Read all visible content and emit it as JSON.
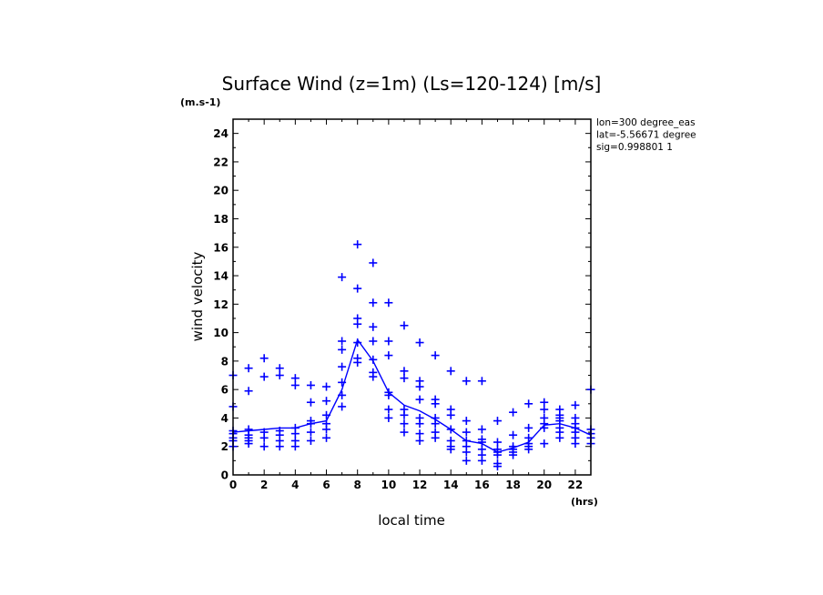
{
  "chart_data": {
    "type": "scatter",
    "title": "Surface Wind (z=1m) (Ls=120-124) [m/s]",
    "y_units": "(m.s-1)",
    "x_units": "(hrs)",
    "xlabel": "local time",
    "ylabel": "wind velocity",
    "xlim": [
      0,
      23
    ],
    "ylim": [
      0,
      25
    ],
    "x_ticks": [
      0,
      2,
      4,
      6,
      8,
      10,
      12,
      14,
      16,
      18,
      20,
      22
    ],
    "y_ticks": [
      0,
      2,
      4,
      6,
      8,
      10,
      12,
      14,
      16,
      18,
      20,
      22,
      24
    ],
    "annotations": [
      "lon=300 degree_eas",
      "lat=-5.56671 degree",
      "sig=0.998801 1"
    ],
    "color": "#0000ff",
    "series": [
      {
        "marker": "+",
        "points": [
          [
            0,
            7.0
          ],
          [
            0,
            4.8
          ],
          [
            0,
            3.1
          ],
          [
            0,
            2.9
          ],
          [
            0,
            2.6
          ],
          [
            0,
            2.4
          ],
          [
            0,
            2.0
          ],
          [
            1,
            7.5
          ],
          [
            1,
            5.9
          ],
          [
            1,
            3.2
          ],
          [
            1,
            2.8
          ],
          [
            1,
            2.6
          ],
          [
            1,
            2.4
          ],
          [
            1,
            2.2
          ],
          [
            2,
            8.2
          ],
          [
            2,
            6.9
          ],
          [
            2,
            3.0
          ],
          [
            2,
            2.6
          ],
          [
            2,
            2.0
          ],
          [
            3,
            7.5
          ],
          [
            3,
            7.0
          ],
          [
            3,
            3.1
          ],
          [
            3,
            2.8
          ],
          [
            3,
            2.4
          ],
          [
            3,
            2.0
          ],
          [
            4,
            6.8
          ],
          [
            4,
            6.3
          ],
          [
            4,
            3.3
          ],
          [
            4,
            2.9
          ],
          [
            4,
            2.4
          ],
          [
            4,
            2.0
          ],
          [
            5,
            6.3
          ],
          [
            5,
            5.1
          ],
          [
            5,
            3.8
          ],
          [
            5,
            3.6
          ],
          [
            5,
            3.0
          ],
          [
            5,
            2.4
          ],
          [
            6,
            6.2
          ],
          [
            6,
            5.2
          ],
          [
            6,
            4.2
          ],
          [
            6,
            3.6
          ],
          [
            6,
            3.2
          ],
          [
            6,
            2.6
          ],
          [
            7,
            13.9
          ],
          [
            7,
            9.4
          ],
          [
            7,
            8.8
          ],
          [
            7,
            7.6
          ],
          [
            7,
            6.5
          ],
          [
            7,
            5.6
          ],
          [
            7,
            4.8
          ],
          [
            8,
            16.2
          ],
          [
            8,
            13.1
          ],
          [
            8,
            11.0
          ],
          [
            8,
            10.6
          ],
          [
            8,
            9.3
          ],
          [
            8,
            8.2
          ],
          [
            8,
            7.9
          ],
          [
            9,
            14.9
          ],
          [
            9,
            12.1
          ],
          [
            9,
            10.4
          ],
          [
            9,
            9.4
          ],
          [
            9,
            8.1
          ],
          [
            9,
            7.2
          ],
          [
            9,
            6.9
          ],
          [
            10,
            12.1
          ],
          [
            10,
            9.4
          ],
          [
            10,
            8.4
          ],
          [
            10,
            5.8
          ],
          [
            10,
            5.6
          ],
          [
            10,
            4.6
          ],
          [
            10,
            4.0
          ],
          [
            11,
            10.5
          ],
          [
            11,
            7.3
          ],
          [
            11,
            6.8
          ],
          [
            11,
            4.6
          ],
          [
            11,
            4.2
          ],
          [
            11,
            3.6
          ],
          [
            11,
            3.0
          ],
          [
            12,
            9.3
          ],
          [
            12,
            6.6
          ],
          [
            12,
            6.2
          ],
          [
            12,
            5.3
          ],
          [
            12,
            4.0
          ],
          [
            12,
            3.6
          ],
          [
            12,
            2.9
          ],
          [
            12,
            2.4
          ],
          [
            13,
            8.4
          ],
          [
            13,
            5.3
          ],
          [
            13,
            5.0
          ],
          [
            13,
            4.0
          ],
          [
            13,
            3.6
          ],
          [
            13,
            3.0
          ],
          [
            13,
            2.6
          ],
          [
            14,
            7.3
          ],
          [
            14,
            4.6
          ],
          [
            14,
            4.2
          ],
          [
            14,
            3.2
          ],
          [
            14,
            2.4
          ],
          [
            14,
            2.0
          ],
          [
            14,
            1.8
          ],
          [
            15,
            6.6
          ],
          [
            15,
            3.8
          ],
          [
            15,
            3.0
          ],
          [
            15,
            2.4
          ],
          [
            15,
            2.0
          ],
          [
            15,
            1.6
          ],
          [
            15,
            1.0
          ],
          [
            16,
            6.6
          ],
          [
            16,
            3.2
          ],
          [
            16,
            2.5
          ],
          [
            16,
            2.3
          ],
          [
            16,
            1.8
          ],
          [
            16,
            1.4
          ],
          [
            16,
            1.0
          ],
          [
            17,
            3.8
          ],
          [
            17,
            2.3
          ],
          [
            17,
            1.8
          ],
          [
            17,
            1.6
          ],
          [
            17,
            1.4
          ],
          [
            17,
            0.8
          ],
          [
            17,
            0.6
          ],
          [
            18,
            4.4
          ],
          [
            18,
            2.8
          ],
          [
            18,
            2.0
          ],
          [
            18,
            1.8
          ],
          [
            18,
            1.6
          ],
          [
            18,
            1.4
          ],
          [
            19,
            5.0
          ],
          [
            19,
            3.3
          ],
          [
            19,
            2.6
          ],
          [
            19,
            2.2
          ],
          [
            19,
            2.0
          ],
          [
            19,
            1.8
          ],
          [
            20,
            5.1
          ],
          [
            20,
            4.6
          ],
          [
            20,
            4.0
          ],
          [
            20,
            3.6
          ],
          [
            20,
            3.3
          ],
          [
            20,
            2.2
          ],
          [
            21,
            4.6
          ],
          [
            21,
            4.2
          ],
          [
            21,
            4.0
          ],
          [
            21,
            3.8
          ],
          [
            21,
            3.3
          ],
          [
            21,
            3.0
          ],
          [
            21,
            2.6
          ],
          [
            22,
            4.9
          ],
          [
            22,
            4.0
          ],
          [
            22,
            3.6
          ],
          [
            22,
            3.3
          ],
          [
            22,
            3.0
          ],
          [
            22,
            2.6
          ],
          [
            22,
            2.2
          ],
          [
            23,
            6.0
          ],
          [
            23,
            3.2
          ],
          [
            23,
            2.9
          ],
          [
            23,
            2.6
          ],
          [
            23,
            2.2
          ]
        ]
      },
      {
        "marker": "line",
        "x": [
          0,
          1,
          2,
          3,
          4,
          5,
          6,
          7,
          8,
          9,
          10,
          11,
          12,
          13,
          14,
          15,
          16,
          17,
          18,
          19,
          20,
          21,
          22,
          23
        ],
        "y": [
          3.0,
          3.1,
          3.2,
          3.3,
          3.3,
          3.6,
          3.8,
          6.0,
          9.5,
          8.0,
          5.8,
          4.9,
          4.5,
          3.9,
          3.2,
          2.4,
          2.2,
          1.6,
          1.9,
          2.3,
          3.5,
          3.6,
          3.3,
          2.8
        ]
      }
    ]
  }
}
